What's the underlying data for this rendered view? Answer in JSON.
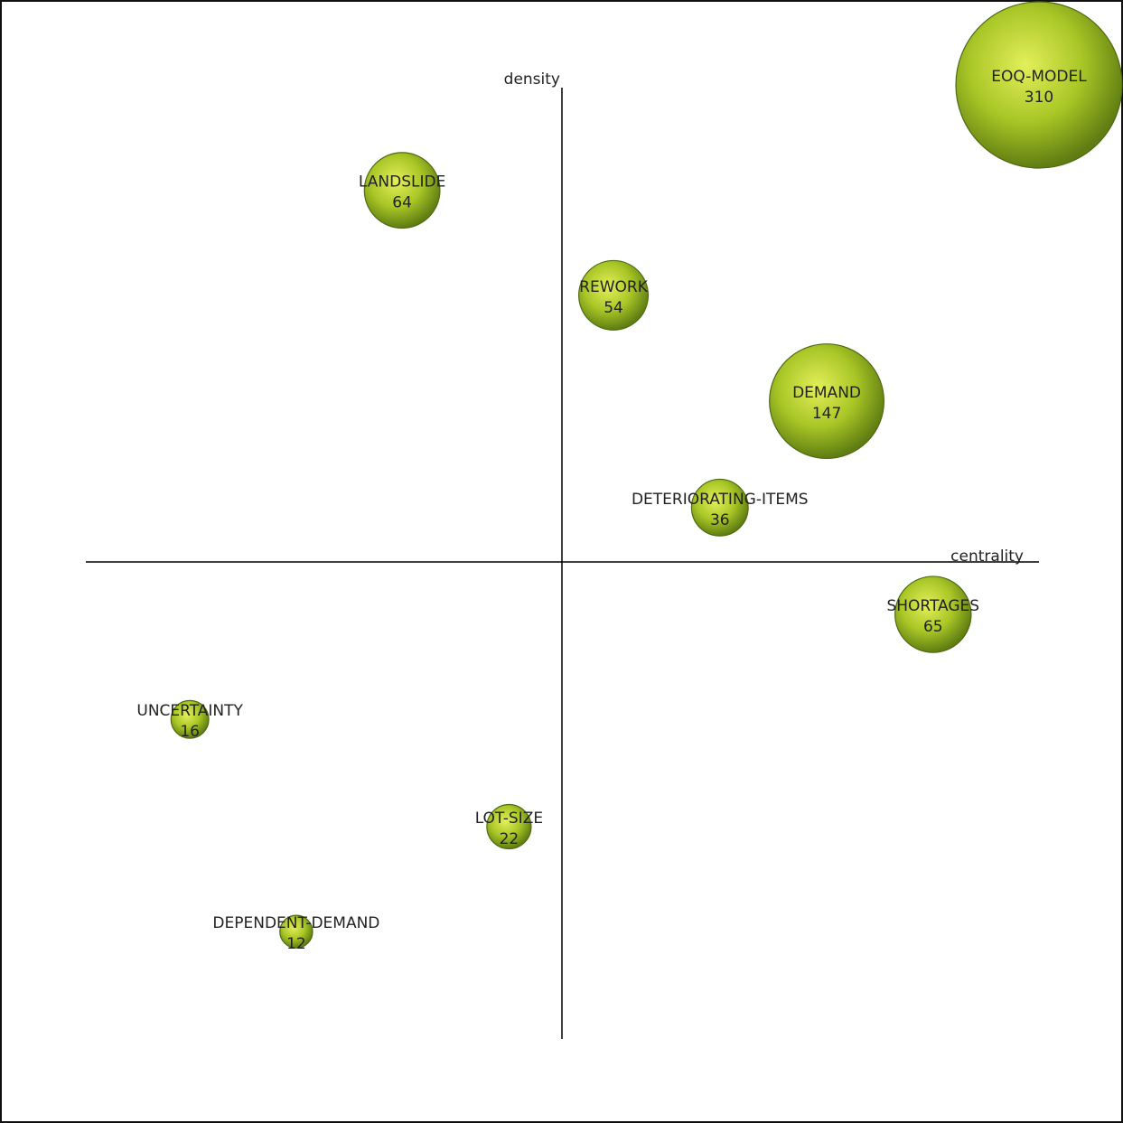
{
  "chart_data": {
    "type": "scatter",
    "subtype": "bubble-strategic-map",
    "title": "",
    "xlabel": "centrality",
    "ylabel": "density",
    "xlim": [
      -1,
      1
    ],
    "ylim": [
      -1,
      1
    ],
    "grid": false,
    "legend": "none",
    "colors": {
      "bubble_light": "#e3ef5a",
      "bubble_mid": "#a9c626",
      "bubble_dark": "#5f7d12",
      "axis": "#000000"
    },
    "points": [
      {
        "label": "EOQ-MODEL",
        "value": 310,
        "x": 1.0,
        "y": 1.0
      },
      {
        "label": "LANDSLIDE",
        "value": 64,
        "x": -0.335,
        "y": 0.779
      },
      {
        "label": "REWORK",
        "value": 54,
        "x": 0.108,
        "y": 0.559
      },
      {
        "label": "DEMAND",
        "value": 147,
        "x": 0.555,
        "y": 0.337
      },
      {
        "label": "DETERIORATING-ITEMS",
        "value": 36,
        "x": 0.331,
        "y": 0.114
      },
      {
        "label": "SHORTAGES",
        "value": 65,
        "x": 0.778,
        "y": -0.11
      },
      {
        "label": "UNCERTAINTY",
        "value": 16,
        "x": -0.78,
        "y": -0.33
      },
      {
        "label": "LOT-SIZE",
        "value": 22,
        "x": -0.111,
        "y": -0.555
      },
      {
        "label": "DEPENDENT-DEMAND",
        "value": 12,
        "x": -0.557,
        "y": -0.775
      }
    ]
  }
}
